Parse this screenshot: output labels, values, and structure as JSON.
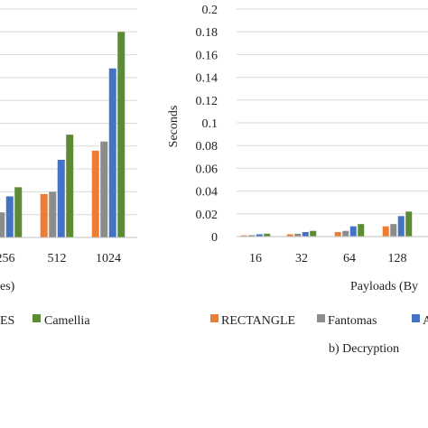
{
  "colors": {
    "RECTANGLE": "#ed7d31",
    "Fantomas": "#8c8c8c",
    "AES": "#4472c4",
    "Camellia": "#5b8c34",
    "gridline": "#d9d9d9",
    "axis": "#bfbfbf"
  },
  "chart_data": [
    {
      "panel": "a (partially visible)",
      "type": "bar",
      "categories": [
        "256",
        "512",
        "1024"
      ],
      "category_labels_visible": [
        "256",
        "512",
        "1024"
      ],
      "series": [
        {
          "name": "RECTANGLE",
          "values": [
            0.005,
            0.095,
            0.19
          ]
        },
        {
          "name": "Fantomas",
          "values": [
            0.055,
            0.1,
            0.21
          ]
        },
        {
          "name": "AES",
          "values": [
            0.09,
            0.17,
            0.37
          ]
        },
        {
          "name": "Camellia",
          "values": [
            0.11,
            0.225,
            0.45
          ]
        }
      ],
      "xlabel_fragment": "es)",
      "legend_fragments": [
        "ES",
        "Camellia"
      ],
      "ylim": [
        0,
        0.5
      ],
      "grid": true,
      "legend_position": "bottom"
    },
    {
      "panel": "b",
      "type": "bar",
      "title": "b) Decryption",
      "categories": [
        "16",
        "32",
        "64",
        "128"
      ],
      "series": [
        {
          "name": "RECTANGLE",
          "values": [
            0.001,
            0.002,
            0.004,
            0.009
          ]
        },
        {
          "name": "Fantomas",
          "values": [
            0.0012,
            0.0025,
            0.005,
            0.011
          ]
        },
        {
          "name": "AES",
          "values": [
            0.002,
            0.004,
            0.009,
            0.018
          ]
        },
        {
          "name": "Camellia",
          "values": [
            0.0025,
            0.005,
            0.011,
            0.022
          ]
        }
      ],
      "ylabel": "Seconds",
      "xlabel": "Payloads (By",
      "yticks": [
        "0",
        "0.02",
        "0.04",
        "0.06",
        "0.08",
        "0.1",
        "0.12",
        "0.14",
        "0.16",
        "0.18",
        "0.2"
      ],
      "ylim": [
        0,
        0.2
      ],
      "grid": true,
      "legend_position": "bottom",
      "legend_visible": [
        "RECTANGLE",
        "Fantomas",
        "A"
      ]
    }
  ]
}
